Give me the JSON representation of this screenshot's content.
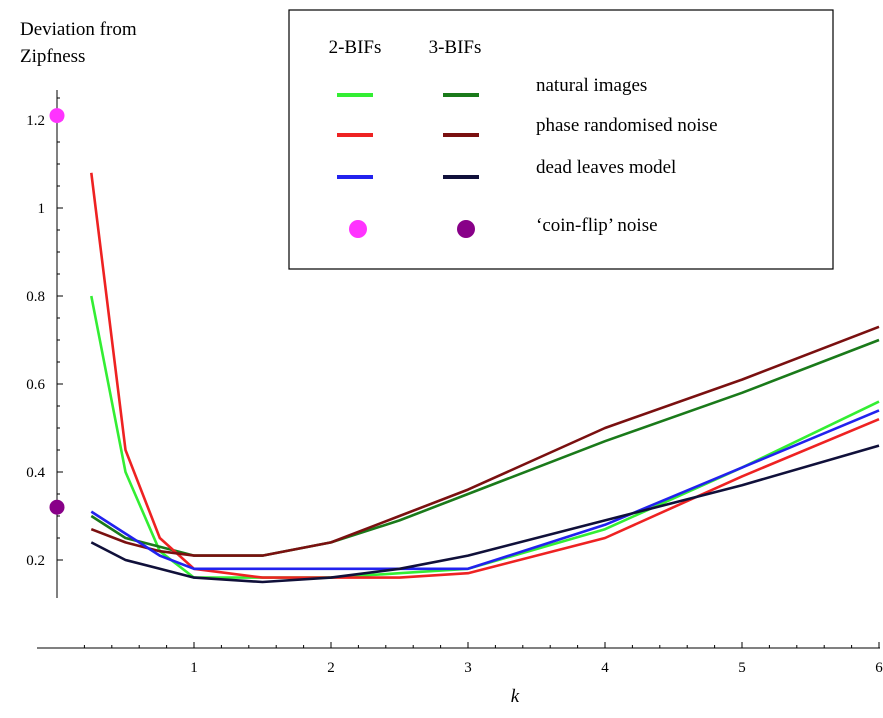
{
  "chart_data": {
    "type": "line",
    "title": "",
    "ylabel": "Deviation from Zipfness",
    "ylabel_lines": [
      "Deviation from",
      "Zipfness"
    ],
    "xlabel": "k",
    "xlim": [
      0,
      6
    ],
    "ylim": [
      0,
      1.3
    ],
    "grid": false,
    "legend_position": "top-right",
    "x_ticks": [
      {
        "value": 1,
        "label": "1"
      },
      {
        "value": 2,
        "label": "2"
      },
      {
        "value": 3,
        "label": "3"
      },
      {
        "value": 4,
        "label": "4"
      },
      {
        "value": 5,
        "label": "5"
      },
      {
        "value": 6,
        "label": "6"
      }
    ],
    "y_ticks": [
      {
        "value": 0.2,
        "label": "0.2"
      },
      {
        "value": 0.4,
        "label": "0.4"
      },
      {
        "value": 0.6,
        "label": "0.6"
      },
      {
        "value": 0.8,
        "label": "0.8"
      },
      {
        "value": 1.0,
        "label": "1"
      },
      {
        "value": 1.2,
        "label": "1.2"
      }
    ],
    "legend": {
      "column_headers": [
        "2-BIFs",
        "3-BIFs"
      ],
      "rows": [
        {
          "label": "natural images",
          "color_2bif": "#33ee33",
          "color_3bif": "#1a7a1a",
          "marker": "line"
        },
        {
          "label": "phase randomised noise",
          "color_2bif": "#ee2222",
          "color_3bif": "#7a1010",
          "marker": "line"
        },
        {
          "label": "dead leaves model",
          "color_2bif": "#2222ee",
          "color_3bif": "#10103a",
          "marker": "line"
        },
        {
          "label": "‘coin-flip’ noise",
          "color_2bif": "#ff33ff",
          "color_3bif": "#880088",
          "marker": "dot"
        }
      ]
    },
    "series": [
      {
        "color": "#33ee33",
        "x": [
          0.25,
          0.5,
          0.75,
          1,
          1.5,
          2,
          2.5,
          3,
          4,
          5,
          6
        ],
        "y": [
          0.8,
          0.4,
          0.22,
          0.16,
          0.16,
          0.16,
          0.17,
          0.18,
          0.27,
          0.41,
          0.56
        ]
      },
      {
        "color": "#1a7a1a",
        "x": [
          0.25,
          0.5,
          0.75,
          1,
          1.5,
          2,
          2.5,
          3,
          4,
          5,
          6
        ],
        "y": [
          0.3,
          0.25,
          0.23,
          0.21,
          0.21,
          0.24,
          0.29,
          0.35,
          0.47,
          0.58,
          0.7
        ]
      },
      {
        "color": "#ee2222",
        "x": [
          0.25,
          0.5,
          0.75,
          1,
          1.5,
          2,
          2.5,
          3,
          4,
          5,
          6
        ],
        "y": [
          1.08,
          0.45,
          0.25,
          0.18,
          0.16,
          0.16,
          0.16,
          0.17,
          0.25,
          0.39,
          0.52
        ]
      },
      {
        "color": "#7a1010",
        "x": [
          0.25,
          0.5,
          0.75,
          1,
          1.5,
          2,
          2.5,
          3,
          4,
          5,
          6
        ],
        "y": [
          0.27,
          0.24,
          0.22,
          0.21,
          0.21,
          0.24,
          0.3,
          0.36,
          0.5,
          0.61,
          0.73
        ]
      },
      {
        "color": "#2222ee",
        "x": [
          0.25,
          0.5,
          0.75,
          1,
          1.5,
          2,
          2.5,
          3,
          4,
          5,
          6
        ],
        "y": [
          0.31,
          0.26,
          0.21,
          0.18,
          0.18,
          0.18,
          0.18,
          0.18,
          0.28,
          0.41,
          0.54
        ]
      },
      {
        "color": "#10103a",
        "x": [
          0.25,
          0.5,
          0.75,
          1,
          1.5,
          2,
          2.5,
          3,
          4,
          5,
          6
        ],
        "y": [
          0.24,
          0.2,
          0.18,
          0.16,
          0.15,
          0.16,
          0.18,
          0.21,
          0.29,
          0.37,
          0.46
        ]
      }
    ],
    "points": [
      {
        "color": "#ff33ff",
        "x": 0,
        "y": 1.21
      },
      {
        "color": "#880088",
        "x": 0,
        "y": 0.32
      }
    ]
  }
}
